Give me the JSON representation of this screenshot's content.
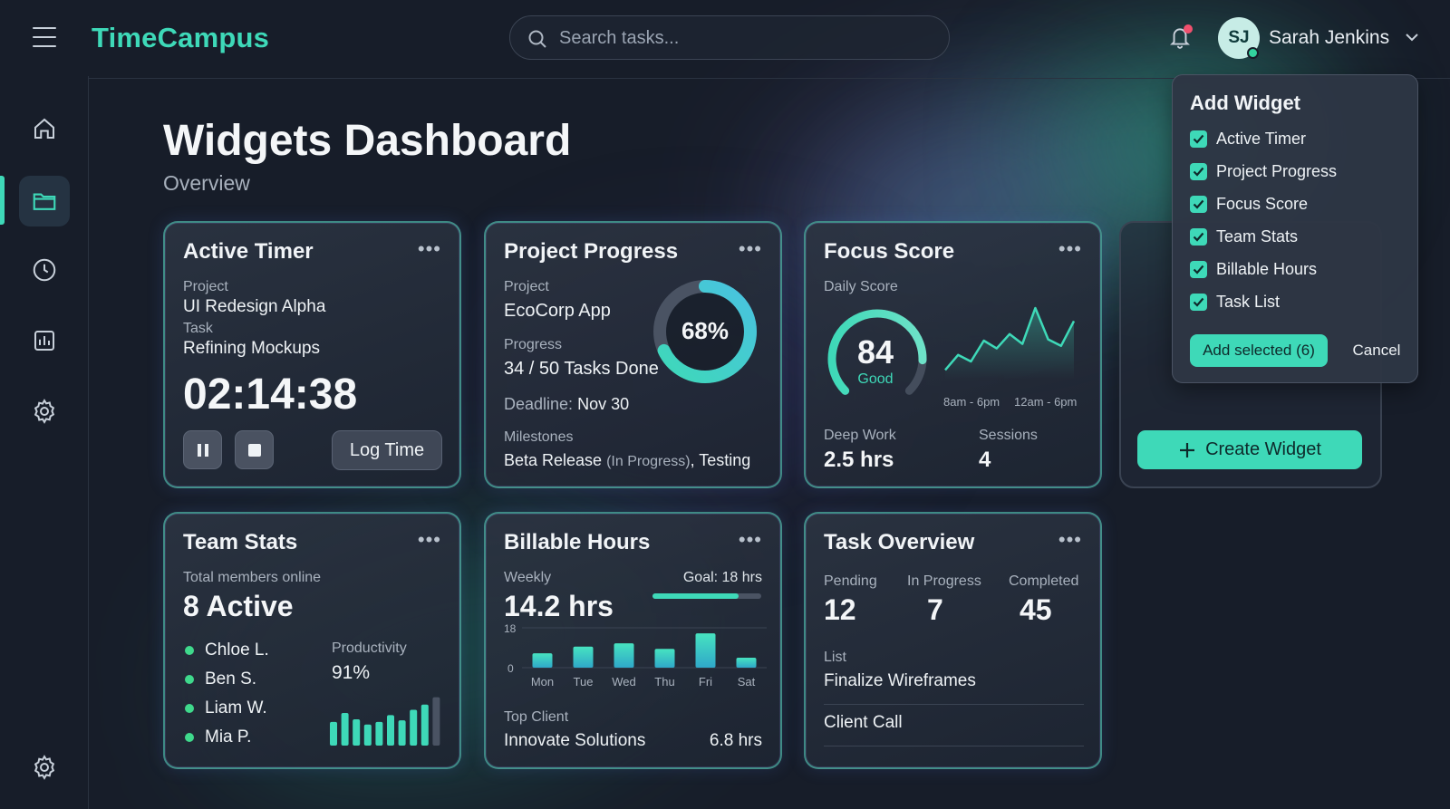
{
  "app": {
    "brand": "TimeCampus"
  },
  "search": {
    "placeholder": "Search tasks..."
  },
  "user": {
    "initials": "SJ",
    "name": "Sarah Jenkins"
  },
  "sidebar": {
    "items": [
      {
        "icon": "home-icon"
      },
      {
        "icon": "folder-icon",
        "active": true
      },
      {
        "icon": "clock-icon"
      },
      {
        "icon": "bar-chart-icon"
      },
      {
        "icon": "gear-icon"
      }
    ],
    "bottom_icon": "gear-icon"
  },
  "page": {
    "title": "Widgets Dashboard",
    "subtitle": "Overview"
  },
  "active_timer": {
    "title": "Active Timer",
    "project_label": "Project",
    "project": "UI Redesign Alpha",
    "task_label": "Task",
    "task": "Refining Mockups",
    "time": "02:14:38",
    "log_label": "Log Time"
  },
  "project_progress": {
    "title": "Project Progress",
    "project_label": "Project",
    "project": "EcoCorp App",
    "progress_label": "Progress",
    "progress_text": "34 / 50 Tasks Done",
    "percent_label": "68%",
    "percent": 68,
    "deadline_label": "Deadline:",
    "deadline": "Nov 30",
    "milestones_label": "Milestones",
    "milestone_1": "Beta Release",
    "milestone_1_status": "(In Progress)",
    "milestone_sep": ",",
    "milestone_2": "Testing"
  },
  "focus_score": {
    "title": "Focus Score",
    "daily_label": "Daily Score",
    "score": "84",
    "score_value": 84,
    "score_text": "Good",
    "range_1": "8am - 6pm",
    "range_2": "12am - 6pm",
    "deep_work_label": "Deep Work",
    "deep_work": "2.5 hrs",
    "sessions_label": "Sessions",
    "sessions": "4"
  },
  "team_stats": {
    "title": "Team Stats",
    "online_label": "Total members online",
    "active": "8 Active",
    "members": [
      "Chloe L.",
      "Ben S.",
      "Liam W.",
      "Mia P."
    ],
    "productivity_label": "Productivity",
    "productivity": "91%"
  },
  "billable_hours": {
    "title": "Billable Hours",
    "weekly_label": "Weekly",
    "weekly": "14.2 hrs",
    "goal_label": "Goal: 18 hrs",
    "goal_fraction": 0.79,
    "y_max": "18",
    "y_min": "0",
    "top_client_label": "Top Client",
    "top_client": "Innovate Solutions",
    "top_client_hours": "6.8 hrs"
  },
  "task_overview": {
    "title": "Task Overview",
    "pending_label": "Pending",
    "pending": "12",
    "in_progress_label": "In Progress",
    "in_progress": "7",
    "completed_label": "Completed",
    "completed": "45",
    "list_label": "List",
    "list": [
      "Finalize Wireframes",
      "Client Call"
    ]
  },
  "add_widget": {
    "title": "Add Widget",
    "options": [
      "Active Timer",
      "Project Progress",
      "Focus Score",
      "Team Stats",
      "Billable Hours",
      "Task List"
    ],
    "add_label": "Add selected (6)",
    "cancel_label": "Cancel"
  },
  "create_widget": {
    "label": "Create Widget"
  },
  "chart_data": [
    {
      "type": "bar",
      "categories": [
        "Mon",
        "Tue",
        "Wed",
        "Thu",
        "Fri",
        "Sat"
      ],
      "values": [
        6.5,
        9.5,
        11,
        8.5,
        15.5,
        4.5
      ],
      "ylim": [
        0,
        18
      ]
    },
    {
      "type": "bar",
      "values": [
        45,
        62,
        50,
        40,
        45,
        58,
        48,
        68,
        78,
        92
      ]
    },
    {
      "type": "line",
      "values": [
        5,
        28,
        18,
        50,
        38,
        60,
        45,
        100,
        52,
        42,
        80
      ],
      "ylim": [
        0,
        100
      ]
    }
  ],
  "colors": {
    "accent": "#3ed9b8",
    "background": "#171d29",
    "online": "#3fd98c",
    "notification": "#f0506e"
  }
}
